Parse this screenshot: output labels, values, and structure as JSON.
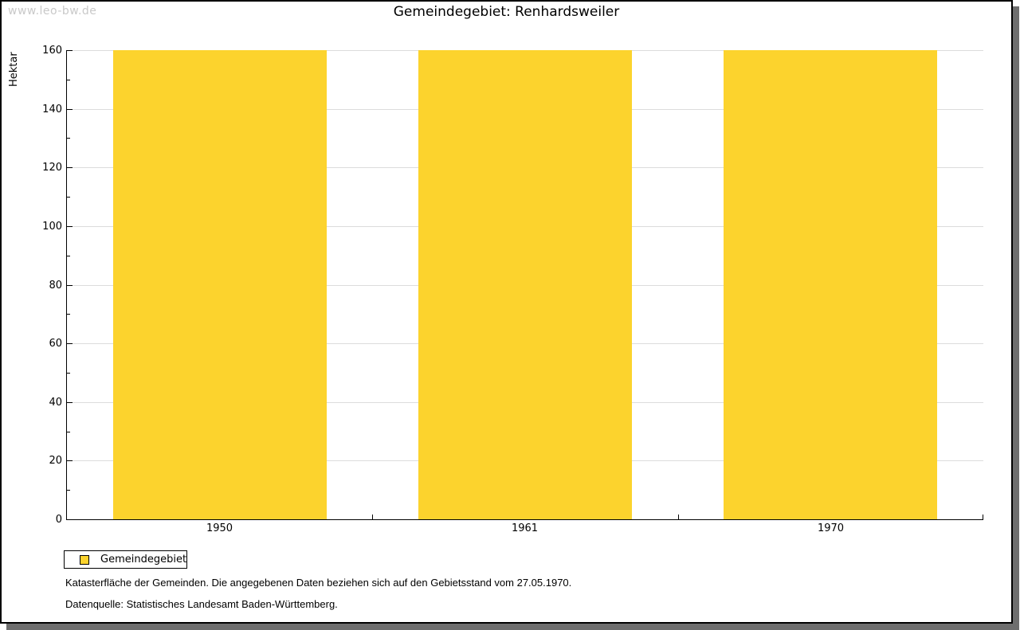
{
  "watermark": "www.leo-bw.de",
  "window": {
    "background": "#ffffff",
    "border_color": "#000000",
    "shadow_color": "#6e6e6e"
  },
  "chart_data": {
    "type": "bar",
    "title": "Gemeindegebiet: Renhardsweiler",
    "ylabel": "Hektar",
    "xlabel": "",
    "categories": [
      "1950",
      "1961",
      "1970"
    ],
    "series": [
      {
        "name": "Gemeindegebiet",
        "values": [
          160,
          160,
          160
        ],
        "color": "#fcd32d"
      }
    ],
    "ylim": [
      0,
      160
    ],
    "y_major_step": 20,
    "y_minor_step": 10,
    "grid": true,
    "gridline_color": "#dcdcdc",
    "legend_position": "bottom-left"
  },
  "legend": {
    "label": "Gemeindegebiet",
    "swatch_color": "#fcd32d"
  },
  "footnotes": [
    "Katasterfläche der Gemeinden. Die angegebenen Daten beziehen sich auf den Gebietsstand vom 27.05.1970.",
    "Datenquelle: Statistisches Landesamt Baden-Württemberg."
  ]
}
